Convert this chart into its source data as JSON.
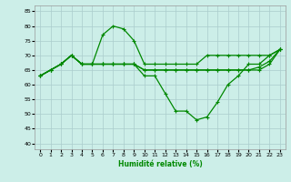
{
  "background_color": "#cceee8",
  "grid_color": "#aacccc",
  "line_color": "#008800",
  "xlabel": "Humidité relative (%)",
  "xlabel_color": "#008800",
  "ylim": [
    38,
    87
  ],
  "xlim": [
    -0.5,
    23.5
  ],
  "yticks": [
    40,
    45,
    50,
    55,
    60,
    65,
    70,
    75,
    80,
    85
  ],
  "xticks": [
    0,
    1,
    2,
    3,
    4,
    5,
    6,
    7,
    8,
    9,
    10,
    11,
    12,
    13,
    14,
    15,
    16,
    17,
    18,
    19,
    20,
    21,
    22,
    23
  ],
  "l1": [
    63,
    65,
    67,
    70,
    67,
    67,
    77,
    80,
    79,
    75,
    67,
    67,
    67,
    67,
    67,
    67,
    70,
    70,
    70,
    70,
    70,
    70,
    70,
    72
  ],
  "l2": [
    63,
    65,
    67,
    70,
    67,
    67,
    67,
    67,
    67,
    67,
    63,
    63,
    57,
    51,
    51,
    48,
    49,
    54,
    60,
    63,
    67,
    67,
    70,
    72
  ],
  "l3": [
    63,
    65,
    67,
    70,
    67,
    67,
    67,
    67,
    67,
    67,
    65,
    65,
    65,
    65,
    65,
    65,
    65,
    65,
    65,
    65,
    65,
    66,
    68,
    72
  ],
  "l4": [
    63,
    65,
    67,
    70,
    67,
    67,
    67,
    67,
    67,
    67,
    65,
    65,
    65,
    65,
    65,
    65,
    65,
    65,
    65,
    65,
    65,
    65,
    67,
    72
  ],
  "marker": "+",
  "markersize": 3,
  "linewidth": 0.9
}
